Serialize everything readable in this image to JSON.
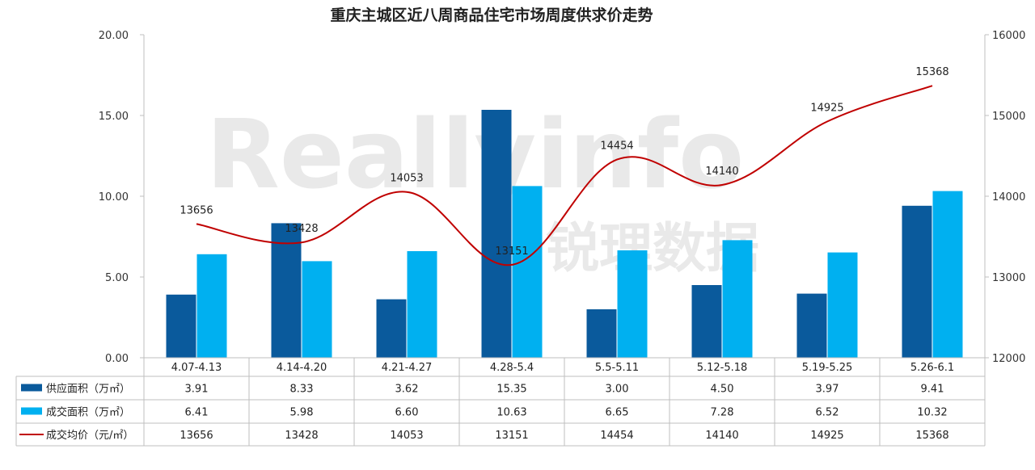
{
  "chart_data": {
    "type": "bar",
    "title": "重庆主城区近八周商品住宅市场周度供求价走势",
    "categories": [
      "4.07-4.13",
      "4.14-4.20",
      "4.21-4.27",
      "4.28-5.4",
      "5.5-5.11",
      "5.12-5.18",
      "5.19-5.25",
      "5.26-6.1"
    ],
    "series": [
      {
        "name": "供应面积（万㎡）",
        "type": "bar",
        "axis": "left",
        "color": "#0a5a9c",
        "values": [
          3.91,
          8.33,
          3.62,
          15.35,
          3.0,
          4.5,
          3.97,
          9.41
        ],
        "labels": [
          "3.91",
          "8.33",
          "3.62",
          "15.35",
          "3.00",
          "4.50",
          "3.97",
          "9.41"
        ]
      },
      {
        "name": "成交面积（万㎡）",
        "type": "bar",
        "axis": "left",
        "color": "#00b0f0",
        "values": [
          6.41,
          5.98,
          6.6,
          10.63,
          6.65,
          7.28,
          6.52,
          10.32
        ],
        "labels": [
          "6.41",
          "5.98",
          "6.60",
          "10.63",
          "6.65",
          "7.28",
          "6.52",
          "10.32"
        ]
      },
      {
        "name": "成交均价（元/㎡）",
        "type": "line",
        "axis": "right",
        "color": "#c00000",
        "values": [
          13656,
          13428,
          14053,
          13151,
          14454,
          14140,
          14925,
          15368
        ],
        "labels": [
          "13656",
          "13428",
          "14053",
          "13151",
          "14454",
          "14140",
          "14925",
          "15368"
        ]
      }
    ],
    "y_left": {
      "min": 0,
      "max": 20,
      "ticks": [
        "0.00",
        "5.00",
        "10.00",
        "15.00",
        "20.00"
      ]
    },
    "y_right": {
      "min": 12000,
      "max": 16000,
      "ticks": [
        "12000",
        "13000",
        "14000",
        "15000",
        "16000"
      ]
    },
    "legend": "data-table",
    "grid": false
  },
  "watermark": {
    "latin": "Reallyinfo",
    "cn": "锐理数据"
  }
}
